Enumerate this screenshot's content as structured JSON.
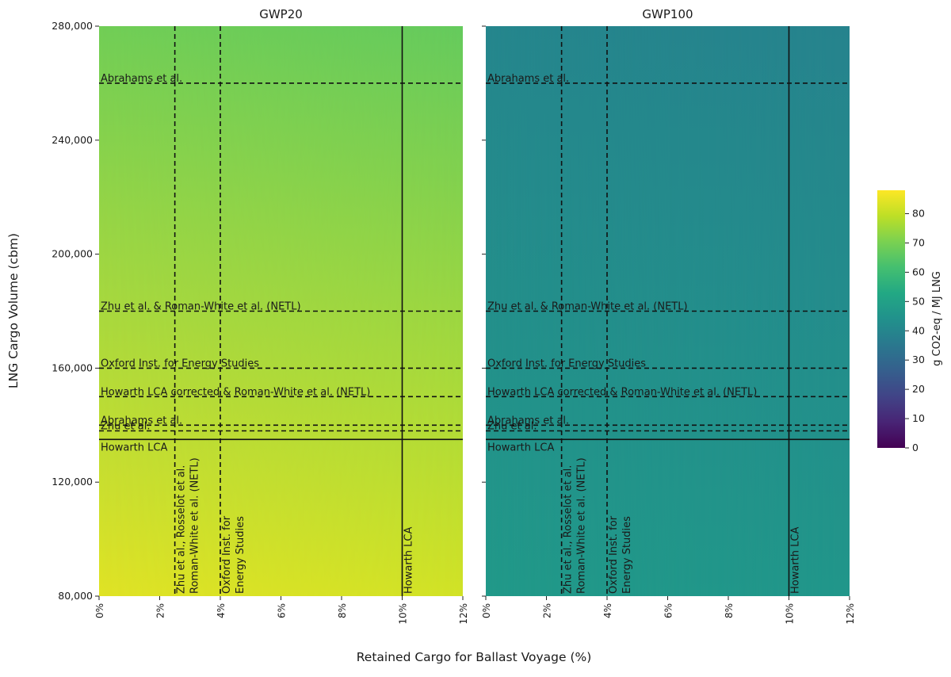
{
  "chart_data": {
    "type": "heatmap",
    "xlabel": "Retained Cargo for Ballast Voyage (%)",
    "ylabel": "LNG Cargo Volume (cbm)",
    "xlim": [
      0,
      12
    ],
    "ylim": [
      80000,
      280000
    ],
    "x_ticks": [
      0,
      2,
      4,
      6,
      8,
      10,
      12
    ],
    "x_tick_labels": [
      "0%",
      "2%",
      "4%",
      "6%",
      "8%",
      "10%",
      "12%"
    ],
    "y_ticks": [
      80000,
      120000,
      160000,
      200000,
      240000,
      280000
    ],
    "y_tick_labels": [
      "80,000",
      "120,000",
      "160,000",
      "200,000",
      "240,000",
      "280,000"
    ],
    "colorbar": {
      "label": "g CO2-eq / MJ LNG",
      "colormap": "viridis",
      "range": [
        0,
        88
      ],
      "ticks": [
        0,
        10,
        20,
        30,
        40,
        50,
        60,
        70,
        80
      ],
      "tick_labels": [
        "0",
        "10",
        "20",
        "30",
        "40",
        "50",
        "60",
        "70",
        "80"
      ]
    },
    "panels": [
      {
        "title": "GWP20",
        "value_grid": {
          "x": [
            0,
            12
          ],
          "y": [
            80000,
            280000
          ],
          "z": [
            [
              84,
              82
            ],
            [
              69,
              67
            ]
          ]
        }
      },
      {
        "title": "GWP100",
        "value_grid": {
          "x": [
            0,
            12
          ],
          "y": [
            80000,
            280000
          ],
          "z": [
            [
              47,
              46
            ],
            [
              40,
              39
            ]
          ]
        }
      }
    ],
    "reference_lines": {
      "horizontal": [
        {
          "y": 260000,
          "label": "Abrahams et al.",
          "style": "dashed"
        },
        {
          "y": 180000,
          "label": "Zhu et al. & Roman-White et al. (NETL)",
          "style": "dashed"
        },
        {
          "y": 160000,
          "label": "Oxford Inst. for Energy Studies",
          "style": "dashed"
        },
        {
          "y": 150000,
          "label": "Howarth LCA corrected & Roman-White et al. (NETL)",
          "style": "dashed"
        },
        {
          "y": 140000,
          "label": "Abrahams et al.",
          "style": "dashed"
        },
        {
          "y": 138000,
          "label": "Zhu et al.",
          "style": "dashed"
        },
        {
          "y": 135000,
          "label": "Howarth LCA",
          "style": "solid"
        }
      ],
      "vertical": [
        {
          "x": 2.5,
          "label_lines": [
            "Zhu et al., Rosselot et al.",
            "Roman-White et al. (NETL)"
          ],
          "style": "dashed"
        },
        {
          "x": 4,
          "label_lines": [
            "Oxford Inst. for",
            "Energy Studies"
          ],
          "style": "dashed"
        },
        {
          "x": 10,
          "label_lines": [
            "Howarth LCA"
          ],
          "style": "solid"
        }
      ]
    }
  }
}
